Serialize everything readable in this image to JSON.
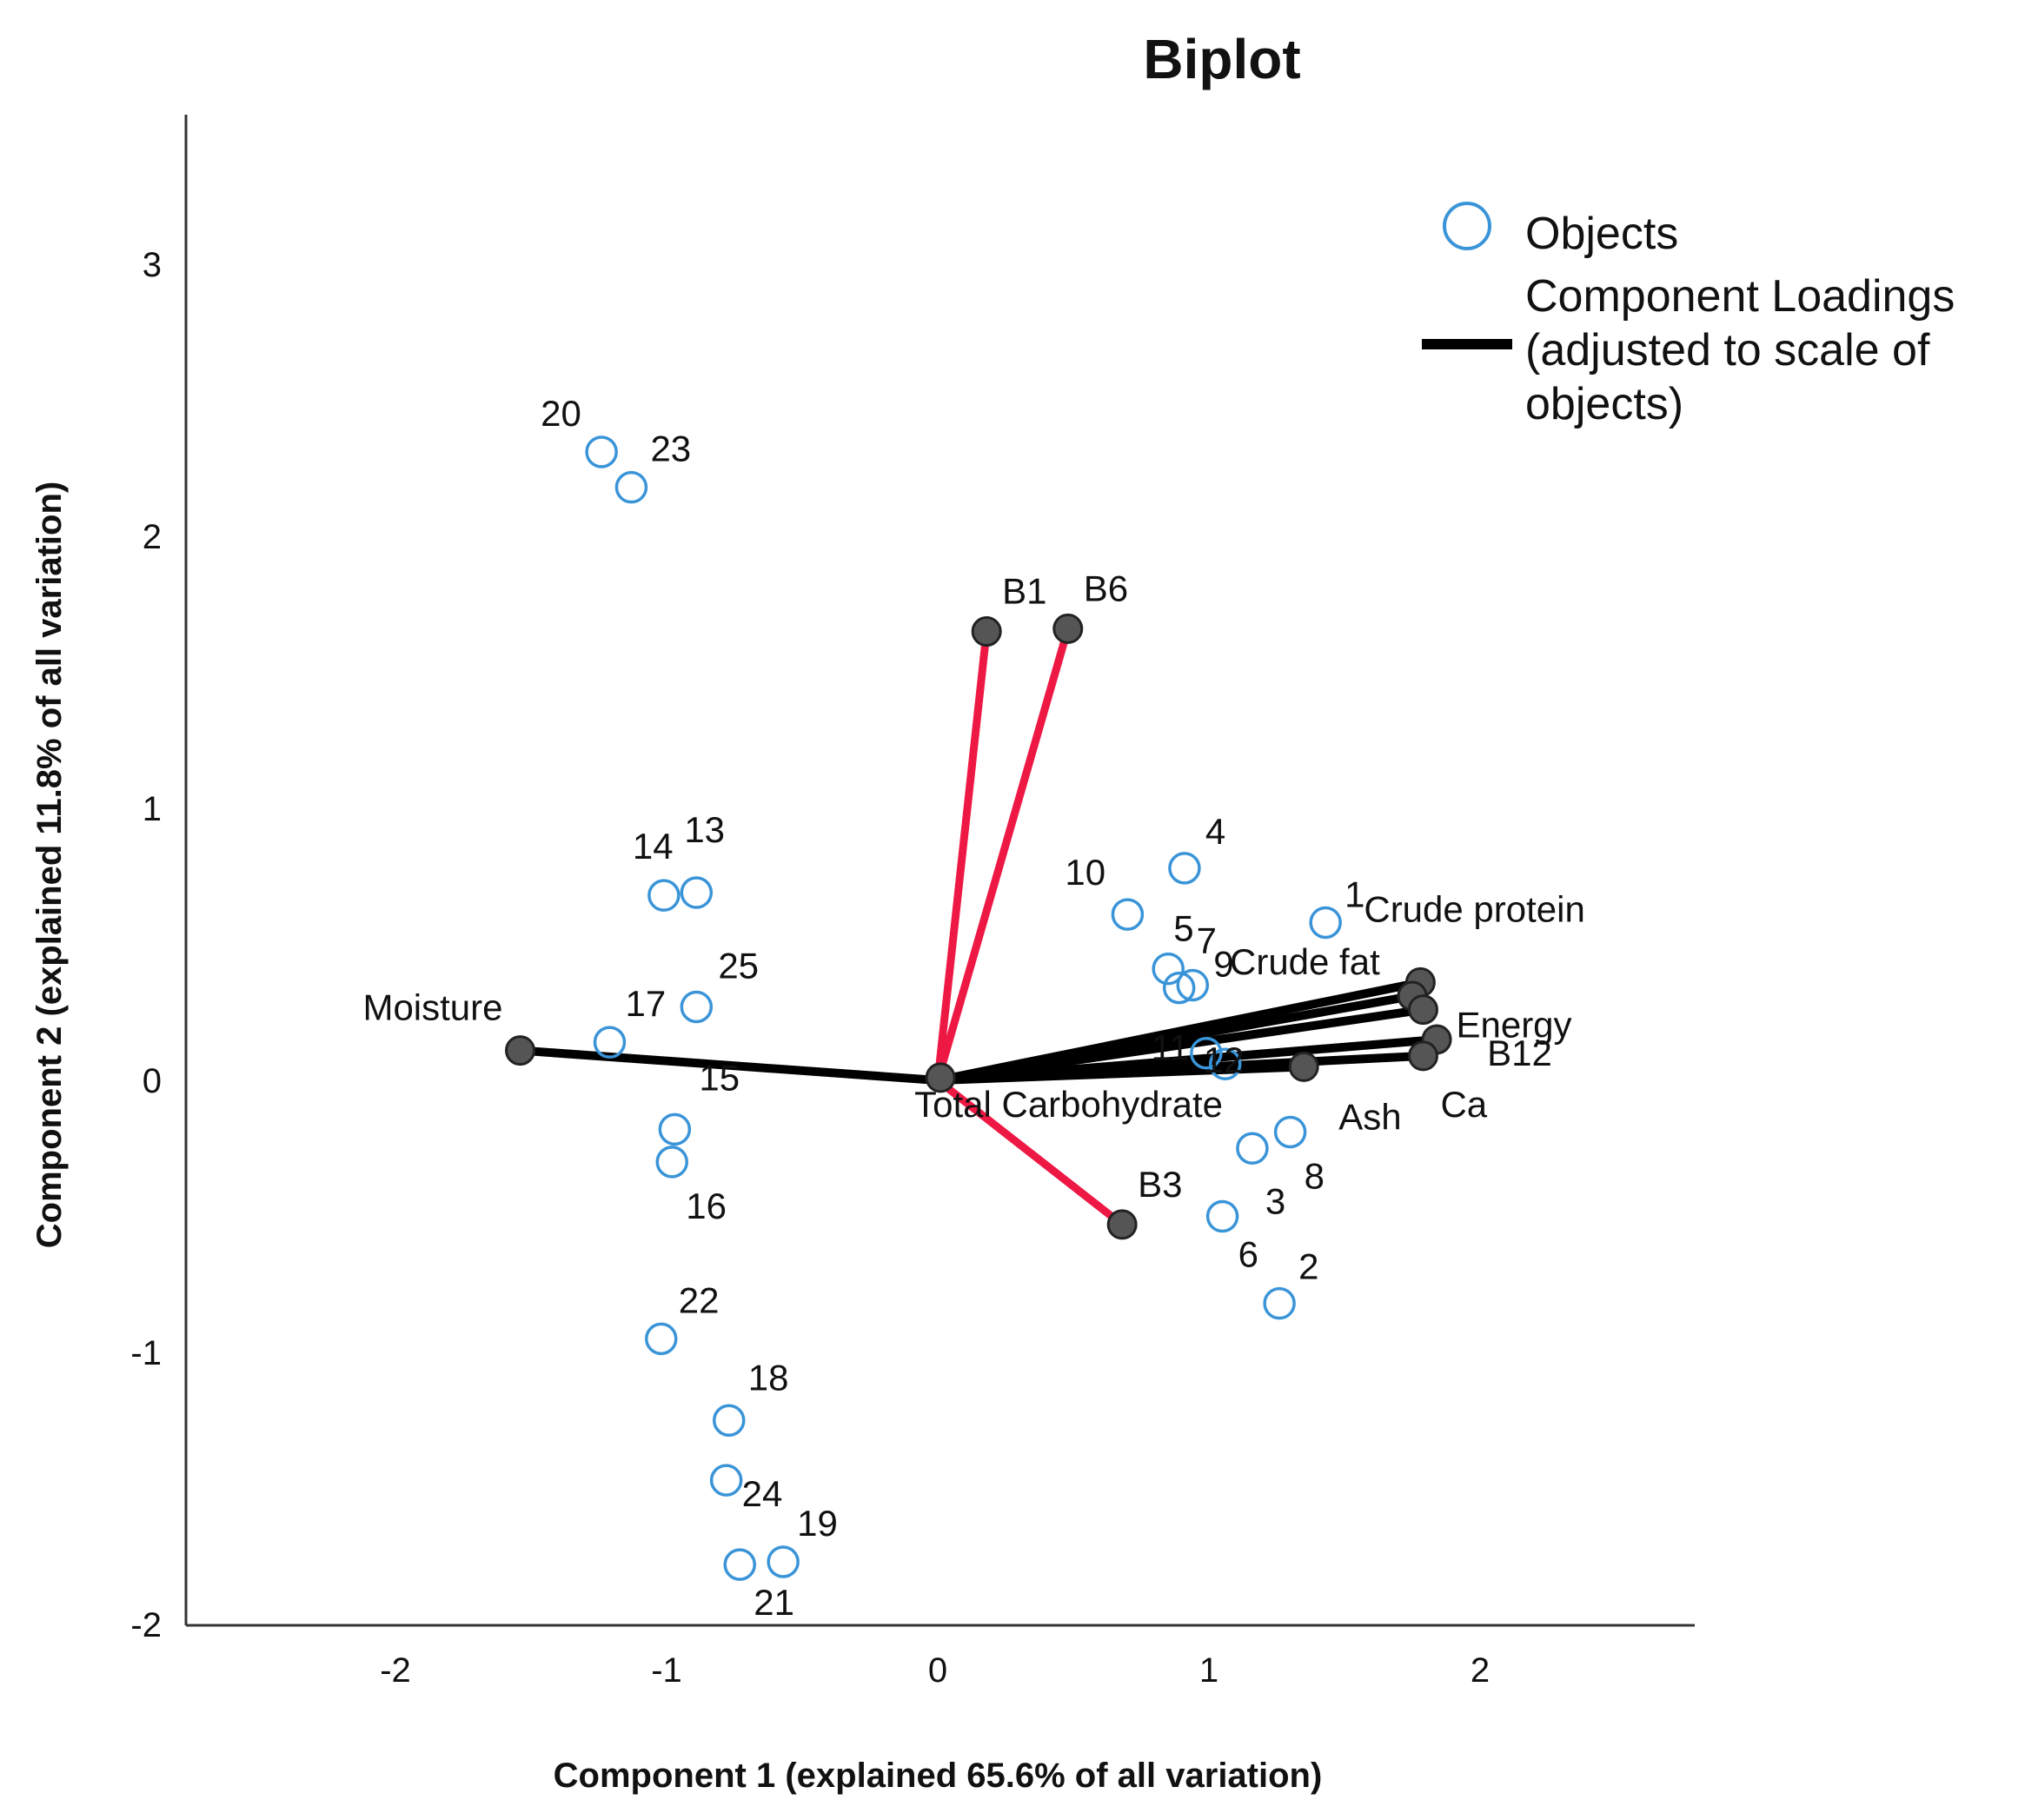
{
  "chart_data": {
    "type": "scatter",
    "subtype": "biplot",
    "title": "Biplot",
    "xlabel": "Component 1 (explained 65.6% of all variation)",
    "ylabel": "Component 2 (explained 11.8% of all variation)",
    "xlim": [
      -2.8,
      2.8
    ],
    "ylim": [
      -2.0,
      3.55
    ],
    "xticks": [
      -2,
      -1,
      0,
      1,
      2
    ],
    "yticks": [
      -2,
      -1,
      0,
      1,
      2,
      3
    ],
    "grid": false,
    "legend": {
      "placement": "top-right",
      "entries": [
        {
          "label": "Objects",
          "marker": "open-circle",
          "color": "#3a94d8"
        },
        {
          "label": "Component Loadings (adjusted to scale of objects)",
          "marker": "line",
          "color": "#000000"
        }
      ]
    },
    "colors": {
      "objects": "#3a94d8",
      "loadings_black": "#000000",
      "loadings_red": "#ee1844",
      "loading_node": "#555555"
    },
    "objects": [
      {
        "label": "1",
        "x": 1.43,
        "y": 0.58
      },
      {
        "label": "2",
        "x": 1.26,
        "y": -0.82
      },
      {
        "label": "3",
        "x": 1.16,
        "y": -0.25
      },
      {
        "label": "4",
        "x": 0.91,
        "y": 0.78
      },
      {
        "label": "5",
        "x": 0.85,
        "y": 0.41
      },
      {
        "label": "6",
        "x": 1.05,
        "y": -0.5
      },
      {
        "label": "7",
        "x": 0.89,
        "y": 0.34
      },
      {
        "label": "8",
        "x": 1.3,
        "y": -0.19
      },
      {
        "label": "9",
        "x": 0.94,
        "y": 0.35
      },
      {
        "label": "10",
        "x": 0.7,
        "y": 0.61
      },
      {
        "label": "11",
        "x": 0.99,
        "y": 0.1
      },
      {
        "label": "12",
        "x": 1.06,
        "y": 0.06
      },
      {
        "label": "13",
        "x": -0.89,
        "y": 0.69
      },
      {
        "label": "14",
        "x": -1.01,
        "y": 0.68
      },
      {
        "label": "15",
        "x": -0.97,
        "y": -0.18
      },
      {
        "label": "16",
        "x": -0.98,
        "y": -0.3
      },
      {
        "label": "17",
        "x": -1.21,
        "y": 0.14
      },
      {
        "label": "18",
        "x": -0.77,
        "y": -1.25
      },
      {
        "label": "19",
        "x": -0.57,
        "y": -1.77
      },
      {
        "label": "20",
        "x": -1.24,
        "y": 2.31
      },
      {
        "label": "21",
        "x": -0.73,
        "y": -1.78
      },
      {
        "label": "22",
        "x": -1.02,
        "y": -0.95
      },
      {
        "label": "23",
        "x": -1.13,
        "y": 2.18
      },
      {
        "label": "24",
        "x": -0.78,
        "y": -1.47
      },
      {
        "label": "25",
        "x": -0.89,
        "y": 0.27
      }
    ],
    "loadings": [
      {
        "label": "Moisture",
        "x": -1.54,
        "y": 0.11,
        "color": "black"
      },
      {
        "label": "Crude protein",
        "x": 1.78,
        "y": 0.36,
        "color": "black"
      },
      {
        "label": "Crude fat",
        "x": 1.75,
        "y": 0.31,
        "color": "black"
      },
      {
        "label": "Energy",
        "x": 1.79,
        "y": 0.26,
        "color": "black"
      },
      {
        "label": "B12",
        "x": 1.84,
        "y": 0.15,
        "color": "black"
      },
      {
        "label": "Ca",
        "x": 1.79,
        "y": 0.09,
        "color": "black"
      },
      {
        "label": "Ash",
        "x": 1.35,
        "y": 0.05,
        "color": "black"
      },
      {
        "label": "Total Carbohydrate",
        "x": 0.01,
        "y": 0.01,
        "color": "black"
      },
      {
        "label": "B1",
        "x": 0.18,
        "y": 1.65,
        "color": "red"
      },
      {
        "label": "B6",
        "x": 0.48,
        "y": 1.66,
        "color": "red"
      },
      {
        "label": "B3",
        "x": 0.68,
        "y": -0.53,
        "color": "red"
      }
    ]
  }
}
